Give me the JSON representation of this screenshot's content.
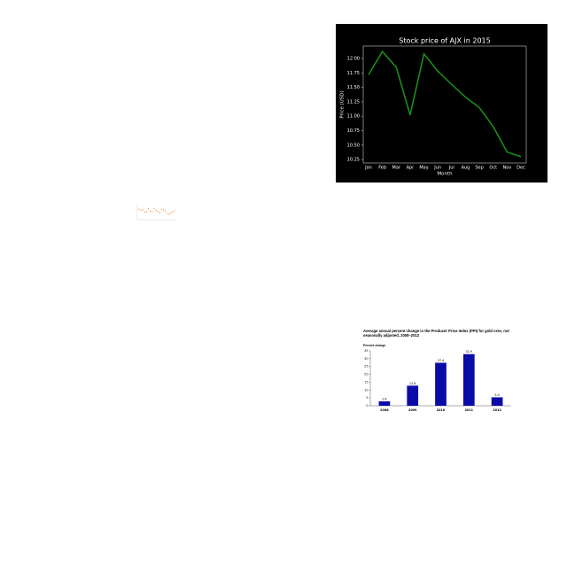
{
  "chart_data": [
    {
      "type": "line",
      "title": "Stock price of AJX in 2015",
      "ylabel": "Price (USD)",
      "xlabel": "Month",
      "categories": [
        "Jan",
        "Feb",
        "Mar",
        "Apr",
        "May",
        "Jun",
        "Jul",
        "Aug",
        "Sep",
        "Oct",
        "Nov",
        "Dec"
      ],
      "values": [
        11.72,
        12.12,
        11.85,
        11.02,
        12.08,
        11.78,
        11.55,
        11.33,
        11.15,
        10.82,
        10.38,
        10.3
      ],
      "color": "#1a8c1a",
      "ylim": [
        10.19,
        12.215
      ],
      "yticks": [
        10.25,
        {
          "value": 10.5,
          "label": "10.50"
        },
        10.75,
        {
          "value": 11,
          "label": "11.00"
        },
        11.25,
        {
          "value": 11.5,
          "label": "11.50"
        },
        11.75,
        {
          "value": 12,
          "label": "12.00"
        }
      ]
    },
    {
      "type": "scatter",
      "values": [
        6.5,
        5.8,
        6.2,
        4.8,
        5.0,
        6.8,
        5.4,
        5.1,
        7.0,
        6.0,
        5.2,
        4.4,
        6.6,
        6.1,
        5.5,
        4.0,
        3.5,
        4.2,
        5.0,
        5.6
      ],
      "color": "#e8833a",
      "ylim": [
        0,
        10
      ]
    },
    {
      "type": "bar",
      "title": "Average annual percent change in the Producer Price Index (PPI) for gold ores, not seasonally adjusted, 2008–2012",
      "ylabel": "Percent change",
      "categories": [
        "2008",
        "2009",
        "2010",
        "2011",
        "2012"
      ],
      "values": [
        2.8,
        12.8,
        27.4,
        32.9,
        5.4
      ],
      "color": "#0b0ba8",
      "ylim": [
        0,
        35
      ],
      "yticks": [
        0,
        5,
        10,
        15,
        20,
        25,
        30,
        35
      ]
    }
  ]
}
